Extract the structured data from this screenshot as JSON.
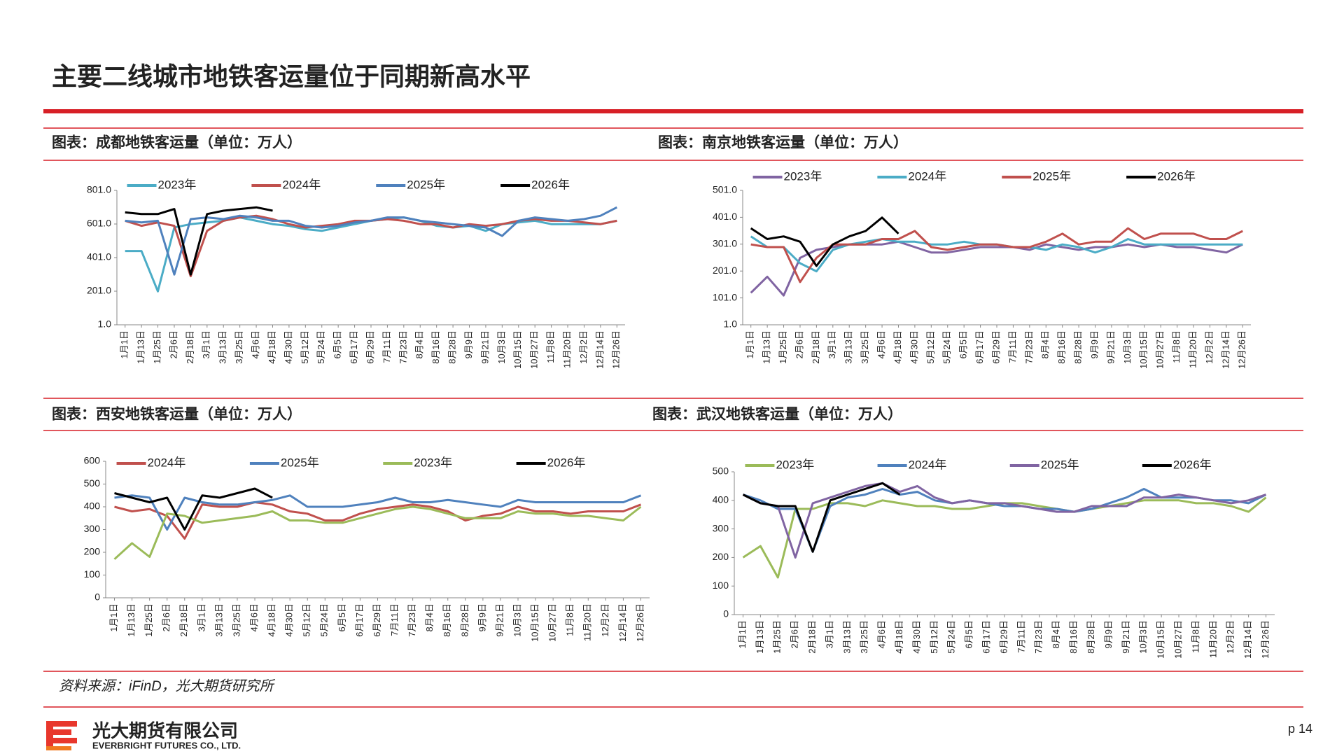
{
  "page_title": "主要二线城市地铁客运量位于同期新高水平",
  "source": "资料来源：iFinD，光大期货研究所",
  "company": "光大期货有限公司",
  "company_en": "EVERBRIGHT FUTURES CO., LTD.",
  "page_number": "p 14",
  "chart_data": [
    {
      "type": "line",
      "title": "图表：成都地铁客运量（单位：万人）",
      "categories": [
        "1月1日",
        "1月13日",
        "1月25日",
        "2月6日",
        "2月18日",
        "3月1日",
        "3月13日",
        "3月25日",
        "4月6日",
        "4月18日",
        "4月30日",
        "5月12日",
        "5月24日",
        "6月5日",
        "6月17日",
        "6月29日",
        "7月11日",
        "7月23日",
        "8月4日",
        "8月16日",
        "8月28日",
        "9月9日",
        "9月21日",
        "10月3日",
        "10月15日",
        "10月27日",
        "11月8日",
        "11月20日",
        "12月2日",
        "12月14日",
        "12月26日"
      ],
      "ylim": [
        1,
        801
      ],
      "yticks": [
        {
          "value": 1,
          "label": "1.0"
        },
        {
          "value": 201,
          "label": "201.0"
        },
        {
          "value": 401,
          "label": "401.0"
        },
        {
          "value": 601,
          "label": "601.0"
        },
        {
          "value": 801,
          "label": "801.0"
        }
      ],
      "series": [
        {
          "name": "2023年",
          "color": "#4bacc6",
          "values": [
            440,
            440,
            200,
            580,
            600,
            610,
            620,
            640,
            620,
            600,
            590,
            570,
            560,
            580,
            600,
            620,
            630,
            640,
            620,
            590,
            580,
            590,
            560,
            600,
            610,
            620,
            600,
            600,
            600,
            600,
            620
          ]
        },
        {
          "name": "2024年",
          "color": "#c0504d",
          "values": [
            620,
            590,
            610,
            590,
            290,
            560,
            620,
            640,
            650,
            630,
            600,
            580,
            590,
            600,
            620,
            620,
            630,
            620,
            600,
            600,
            580,
            600,
            590,
            600,
            620,
            630,
            620,
            620,
            610,
            600,
            620
          ]
        },
        {
          "name": "2025年",
          "color": "#4f81bd",
          "values": [
            620,
            610,
            620,
            300,
            630,
            640,
            630,
            650,
            640,
            620,
            620,
            590,
            580,
            590,
            610,
            620,
            640,
            640,
            620,
            610,
            600,
            590,
            580,
            530,
            620,
            640,
            630,
            620,
            630,
            650,
            700
          ]
        },
        {
          "name": "2026年",
          "color": "#000000",
          "values": [
            670,
            660,
            660,
            690,
            300,
            660,
            680,
            690,
            700,
            680,
            null,
            null,
            null,
            null,
            null,
            null,
            null,
            null,
            null,
            null,
            null,
            null,
            null,
            null,
            null,
            null,
            null,
            null,
            null,
            null,
            null
          ]
        }
      ]
    },
    {
      "type": "line",
      "title": "图表：南京地铁客运量（单位：万人）",
      "categories": [
        "1月1日",
        "1月13日",
        "1月25日",
        "2月6日",
        "2月18日",
        "3月1日",
        "3月13日",
        "3月25日",
        "4月6日",
        "4月18日",
        "4月30日",
        "5月12日",
        "5月24日",
        "6月5日",
        "6月17日",
        "6月29日",
        "7月11日",
        "7月23日",
        "8月4日",
        "8月16日",
        "8月28日",
        "9月9日",
        "9月21日",
        "10月3日",
        "10月15日",
        "10月27日",
        "11月8日",
        "11月20日",
        "12月2日",
        "12月14日",
        "12月26日"
      ],
      "ylim": [
        1,
        501
      ],
      "yticks": [
        {
          "value": 1,
          "label": "1.0"
        },
        {
          "value": 101,
          "label": "101.0"
        },
        {
          "value": 201,
          "label": "201.0"
        },
        {
          "value": 301,
          "label": "301.0"
        },
        {
          "value": 401,
          "label": "401.0"
        },
        {
          "value": 501,
          "label": "501.0"
        }
      ],
      "series": [
        {
          "name": "2023年",
          "color": "#8064a2",
          "values": [
            120,
            180,
            110,
            250,
            280,
            290,
            300,
            300,
            300,
            310,
            290,
            270,
            270,
            280,
            290,
            290,
            290,
            280,
            300,
            290,
            280,
            290,
            290,
            300,
            290,
            300,
            290,
            290,
            280,
            270,
            300
          ]
        },
        {
          "name": "2024年",
          "color": "#4bacc6",
          "values": [
            330,
            290,
            290,
            230,
            200,
            280,
            300,
            310,
            320,
            310,
            310,
            300,
            300,
            310,
            300,
            300,
            290,
            290,
            280,
            300,
            290,
            270,
            290,
            320,
            300,
            300,
            300,
            300,
            300,
            300,
            300
          ]
        },
        {
          "name": "2025年",
          "color": "#c0504d",
          "values": [
            300,
            290,
            290,
            160,
            250,
            300,
            300,
            300,
            320,
            320,
            350,
            290,
            280,
            290,
            300,
            300,
            290,
            290,
            310,
            340,
            300,
            310,
            310,
            360,
            320,
            340,
            340,
            340,
            320,
            320,
            350
          ]
        },
        {
          "name": "2026年",
          "color": "#000000",
          "values": [
            360,
            320,
            330,
            310,
            220,
            300,
            330,
            350,
            400,
            340,
            null,
            null,
            null,
            null,
            null,
            null,
            null,
            null,
            null,
            null,
            null,
            null,
            null,
            null,
            null,
            null,
            null,
            null,
            null,
            null,
            null
          ]
        }
      ]
    },
    {
      "type": "line",
      "title": "图表：西安地铁客运量（单位：万人）",
      "categories": [
        "1月1日",
        "1月13日",
        "1月25日",
        "2月6日",
        "2月18日",
        "3月1日",
        "3月13日",
        "3月25日",
        "4月6日",
        "4月18日",
        "4月30日",
        "5月12日",
        "5月24日",
        "6月5日",
        "6月17日",
        "6月29日",
        "7月11日",
        "7月23日",
        "8月4日",
        "8月16日",
        "8月28日",
        "9月9日",
        "9月21日",
        "10月3日",
        "10月15日",
        "10月27日",
        "11月8日",
        "11月20日",
        "12月2日",
        "12月14日",
        "12月26日"
      ],
      "ylim": [
        0,
        600
      ],
      "yticks": [
        0,
        100,
        200,
        300,
        400,
        500,
        600
      ],
      "series": [
        {
          "name": "2024年",
          "color": "#c0504d",
          "values": [
            400,
            380,
            390,
            360,
            260,
            410,
            400,
            400,
            420,
            410,
            380,
            370,
            340,
            340,
            370,
            390,
            400,
            410,
            400,
            380,
            340,
            360,
            370,
            400,
            380,
            380,
            370,
            380,
            380,
            380,
            410
          ]
        },
        {
          "name": "2025年",
          "color": "#4f81bd",
          "values": [
            440,
            450,
            440,
            300,
            440,
            420,
            410,
            410,
            420,
            430,
            450,
            400,
            400,
            400,
            410,
            420,
            440,
            420,
            420,
            430,
            420,
            410,
            400,
            430,
            420,
            420,
            420,
            420,
            420,
            420,
            450
          ]
        },
        {
          "name": "2023年",
          "color": "#9bbb59",
          "values": [
            170,
            240,
            180,
            370,
            360,
            330,
            340,
            350,
            360,
            380,
            340,
            340,
            330,
            330,
            350,
            370,
            390,
            400,
            390,
            370,
            350,
            350,
            350,
            380,
            370,
            370,
            360,
            360,
            350,
            340,
            400
          ]
        },
        {
          "name": "2026年",
          "color": "#000000",
          "values": [
            460,
            440,
            420,
            440,
            300,
            450,
            440,
            460,
            480,
            440,
            null,
            null,
            null,
            null,
            null,
            null,
            null,
            null,
            null,
            null,
            null,
            null,
            null,
            null,
            null,
            null,
            null,
            null,
            null,
            null,
            null
          ]
        }
      ]
    },
    {
      "type": "line",
      "title": "图表：武汉地铁客运量（单位：万人）",
      "categories": [
        "1月1日",
        "1月13日",
        "1月25日",
        "2月6日",
        "2月18日",
        "3月1日",
        "3月13日",
        "3月25日",
        "4月6日",
        "4月18日",
        "4月30日",
        "5月12日",
        "5月24日",
        "6月5日",
        "6月17日",
        "6月29日",
        "7月11日",
        "7月23日",
        "8月4日",
        "8月16日",
        "8月28日",
        "9月9日",
        "9月21日",
        "10月3日",
        "10月15日",
        "10月27日",
        "11月8日",
        "11月20日",
        "12月2日",
        "12月14日",
        "12月26日"
      ],
      "ylim": [
        0,
        500
      ],
      "yticks": [
        0,
        100,
        200,
        300,
        400,
        500
      ],
      "series": [
        {
          "name": "2023年",
          "color": "#9bbb59",
          "values": [
            200,
            240,
            130,
            370,
            370,
            390,
            390,
            380,
            400,
            390,
            380,
            380,
            370,
            370,
            380,
            390,
            390,
            380,
            370,
            360,
            370,
            380,
            390,
            400,
            400,
            400,
            390,
            390,
            380,
            360,
            410
          ]
        },
        {
          "name": "2024年",
          "color": "#4f81bd",
          "values": [
            420,
            400,
            370,
            370,
            220,
            380,
            410,
            420,
            440,
            420,
            430,
            400,
            390,
            400,
            390,
            380,
            380,
            370,
            370,
            360,
            370,
            390,
            410,
            440,
            410,
            410,
            410,
            400,
            400,
            390,
            420
          ]
        },
        {
          "name": "2025年",
          "color": "#8064a2",
          "values": [
            420,
            390,
            380,
            200,
            390,
            410,
            430,
            450,
            460,
            430,
            450,
            410,
            390,
            400,
            390,
            390,
            380,
            370,
            360,
            360,
            380,
            380,
            380,
            410,
            410,
            420,
            410,
            400,
            390,
            400,
            420
          ]
        },
        {
          "name": "2026年",
          "color": "#000000",
          "values": [
            420,
            390,
            380,
            380,
            220,
            400,
            420,
            440,
            460,
            420,
            null,
            null,
            null,
            null,
            null,
            null,
            null,
            null,
            null,
            null,
            null,
            null,
            null,
            null,
            null,
            null,
            null,
            null,
            null,
            null,
            null
          ]
        }
      ]
    }
  ]
}
